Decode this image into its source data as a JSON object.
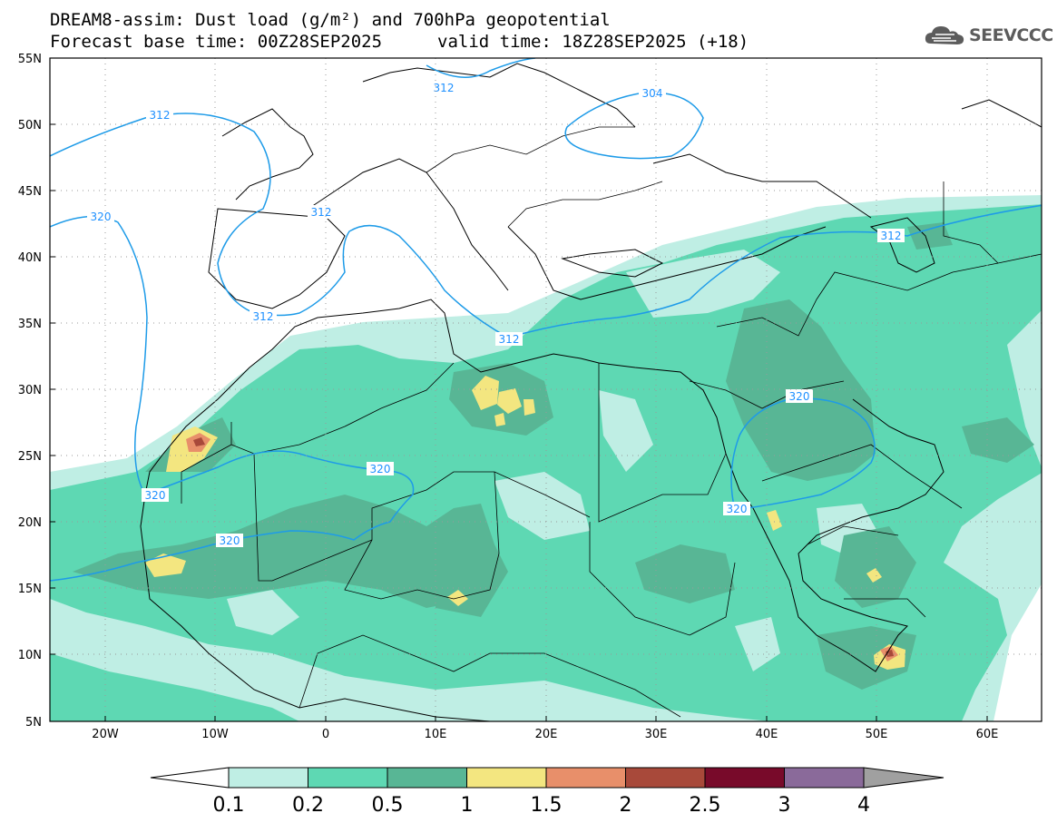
{
  "header": {
    "title": "DREAM8-assim: Dust load (g/m²) and 700hPa geopotential",
    "base_time": "Forecast base time: 00Z28SEP2025",
    "valid_time": "valid time: 18Z28SEP2025 (+18)"
  },
  "logo": {
    "text": "SEEVCCC",
    "icon": "cloud-logo-icon"
  },
  "axes": {
    "lat_labels": [
      "55N",
      "50N",
      "45N",
      "40N",
      "35N",
      "30N",
      "25N",
      "20N",
      "15N",
      "10N",
      "5N"
    ],
    "lon_labels": [
      "20W",
      "10W",
      "0",
      "10E",
      "20E",
      "30E",
      "40E",
      "50E",
      "60E"
    ]
  },
  "contours": {
    "labels": [
      {
        "id": "c312-europe",
        "text": "312"
      },
      {
        "id": "c304",
        "text": "304"
      },
      {
        "id": "c312-atl",
        "text": "312"
      },
      {
        "id": "c312-iberia-n",
        "text": "312"
      },
      {
        "id": "c312-iberia-s",
        "text": "312"
      },
      {
        "id": "c312-med",
        "text": "312"
      },
      {
        "id": "c312-caspian",
        "text": "312"
      },
      {
        "id": "c320-atl",
        "text": "320"
      },
      {
        "id": "c320-sahara",
        "text": "320"
      },
      {
        "id": "c320-coast",
        "text": "320"
      },
      {
        "id": "c320-sahel",
        "text": "320"
      },
      {
        "id": "c320-arabia-n",
        "text": "320"
      },
      {
        "id": "c320-arabia-s",
        "text": "320"
      }
    ]
  },
  "colorbar": {
    "ticks": [
      "0.1",
      "0.2",
      "0.5",
      "1",
      "1.5",
      "2",
      "2.5",
      "3",
      "4"
    ],
    "colors": [
      "#bfeee4",
      "#5ed8b3",
      "#58b695",
      "#f3e680",
      "#e88f6a",
      "#a8493a",
      "#780a2a",
      "#8a6a9a"
    ],
    "under_color": "#ffffff",
    "over_color": "#a0a0a0"
  }
}
